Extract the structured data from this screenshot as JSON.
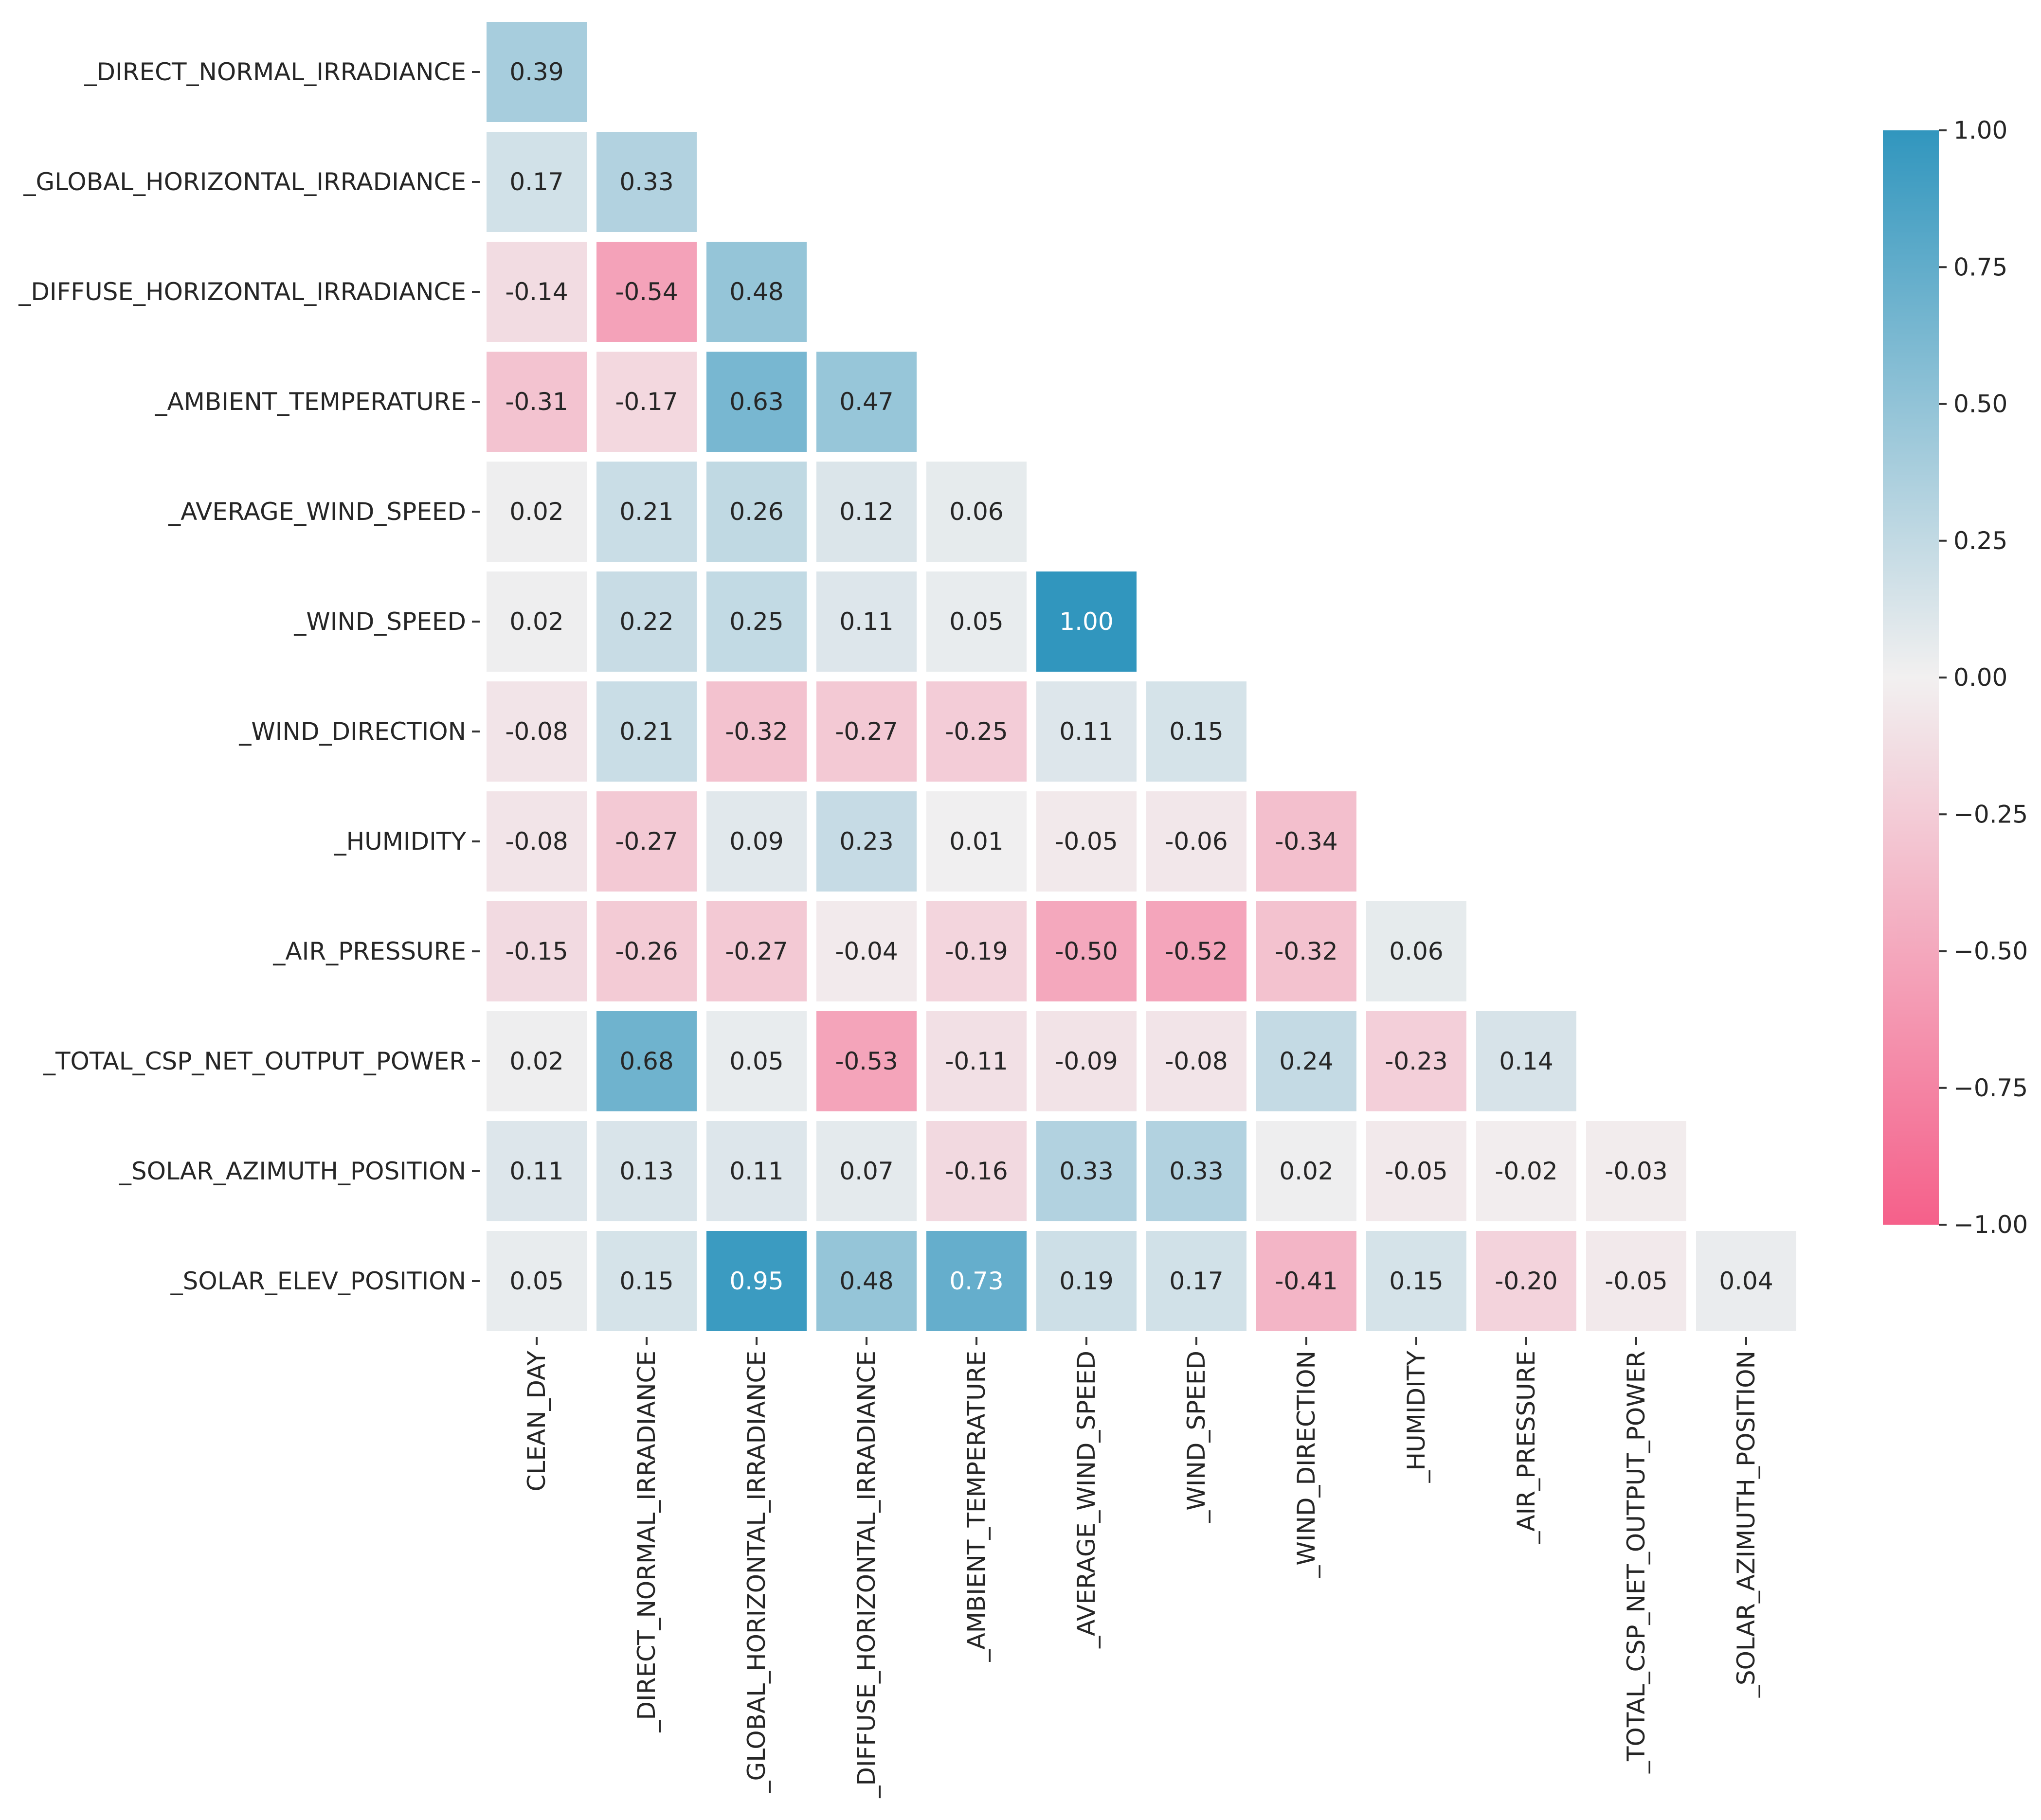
{
  "chart_data": {
    "type": "heatmap",
    "title": "",
    "xlabel": "",
    "ylabel": "",
    "row_labels": [
      "_DIRECT_NORMAL_IRRADIANCE",
      "_GLOBAL_HORIZONTAL_IRRADIANCE",
      "_DIFFUSE_HORIZONTAL_IRRADIANCE",
      "_AMBIENT_TEMPERATURE",
      "_AVERAGE_WIND_SPEED",
      "_WIND_SPEED",
      "_WIND_DIRECTION",
      "_HUMIDITY",
      "_AIR_PRESSURE",
      "_TOTAL_CSP_NET_OUTPUT_POWER",
      "_SOLAR_AZIMUTH_POSITION",
      "_SOLAR_ELEV_POSITION"
    ],
    "column_labels": [
      "CLEAN_DAY",
      "_DIRECT_NORMAL_IRRADIANCE",
      "_GLOBAL_HORIZONTAL_IRRADIANCE",
      "_DIFFUSE_HORIZONTAL_IRRADIANCE",
      "_AMBIENT_TEMPERATURE",
      "_AVERAGE_WIND_SPEED",
      "_WIND_SPEED",
      "_WIND_DIRECTION",
      "_HUMIDITY",
      "_AIR_PRESSURE",
      "_TOTAL_CSP_NET_OUTPUT_POWER",
      "_SOLAR_AZIMUTH_POSITION"
    ],
    "values": [
      [
        0.39
      ],
      [
        0.17,
        0.33
      ],
      [
        -0.14,
        -0.54,
        0.48
      ],
      [
        -0.31,
        -0.17,
        0.63,
        0.47
      ],
      [
        0.02,
        0.21,
        0.26,
        0.12,
        0.06
      ],
      [
        0.02,
        0.22,
        0.25,
        0.11,
        0.05,
        1.0
      ],
      [
        -0.08,
        0.21,
        -0.32,
        -0.27,
        -0.25,
        0.11,
        0.15
      ],
      [
        -0.08,
        -0.27,
        0.09,
        0.23,
        0.01,
        -0.05,
        -0.06,
        -0.34
      ],
      [
        -0.15,
        -0.26,
        -0.27,
        -0.04,
        -0.19,
        -0.5,
        -0.52,
        -0.32,
        0.06
      ],
      [
        0.02,
        0.68,
        0.05,
        -0.53,
        -0.11,
        -0.09,
        -0.08,
        0.24,
        -0.23,
        0.14
      ],
      [
        0.11,
        0.13,
        0.11,
        0.07,
        -0.16,
        0.33,
        0.33,
        0.02,
        -0.05,
        -0.02,
        -0.03
      ],
      [
        0.05,
        0.15,
        0.95,
        0.48,
        0.73,
        0.19,
        0.17,
        -0.41,
        0.15,
        -0.2,
        -0.05,
        0.04
      ]
    ],
    "value_format": "0.00",
    "vmin": -1.0,
    "vmax": 1.0,
    "colorbar": {
      "ticks": [
        1.0,
        0.75,
        0.5,
        0.25,
        0.0,
        -0.25,
        -0.5,
        -0.75,
        -1.0
      ],
      "tick_labels": [
        "1.00",
        "0.75",
        "0.50",
        "0.25",
        "0.00",
        "−0.25",
        "−0.50",
        "−0.75",
        "−1.00"
      ]
    },
    "colors": {
      "positive": "#3196be",
      "neutral": "#f2f0f0",
      "negative": "#f5608a",
      "text_dark": "#262626",
      "text_light": "#ffffff"
    }
  }
}
